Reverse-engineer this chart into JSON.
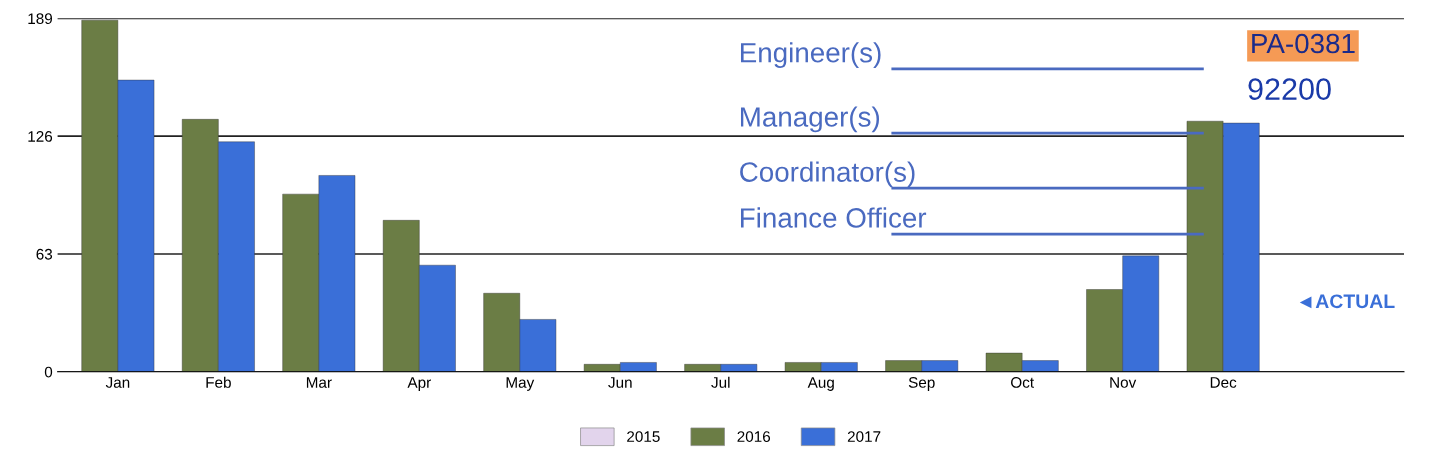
{
  "chart_data": {
    "type": "bar",
    "categories": [
      "Jan",
      "Feb",
      "Mar",
      "Apr",
      "May",
      "Jun",
      "Jul",
      "Aug",
      "Sep",
      "Oct",
      "Nov",
      "Dec"
    ],
    "series": [
      {
        "name": "2015",
        "color": "#e2d4ec",
        "values": [
          null,
          null,
          null,
          null,
          null,
          null,
          null,
          null,
          null,
          null,
          null,
          null
        ]
      },
      {
        "name": "2016",
        "color": "#6b7d45",
        "values": [
          188,
          135,
          95,
          81,
          42,
          4,
          4,
          5,
          6,
          10,
          44,
          134
        ]
      },
      {
        "name": "2017",
        "color": "#3a6fd8",
        "values": [
          156,
          123,
          105,
          57,
          28,
          5,
          4,
          5,
          6,
          6,
          62,
          133
        ]
      }
    ],
    "ylim": [
      0,
      189
    ],
    "yticks": [
      0,
      63,
      126,
      189
    ],
    "grid": "y",
    "legend": "bottom",
    "annotations": [
      "Engineer(s)",
      "Manager(s)",
      "Coordinator(s)",
      "Finance Officer",
      "PA-0381",
      "92200",
      "◄ACTUAL"
    ]
  }
}
